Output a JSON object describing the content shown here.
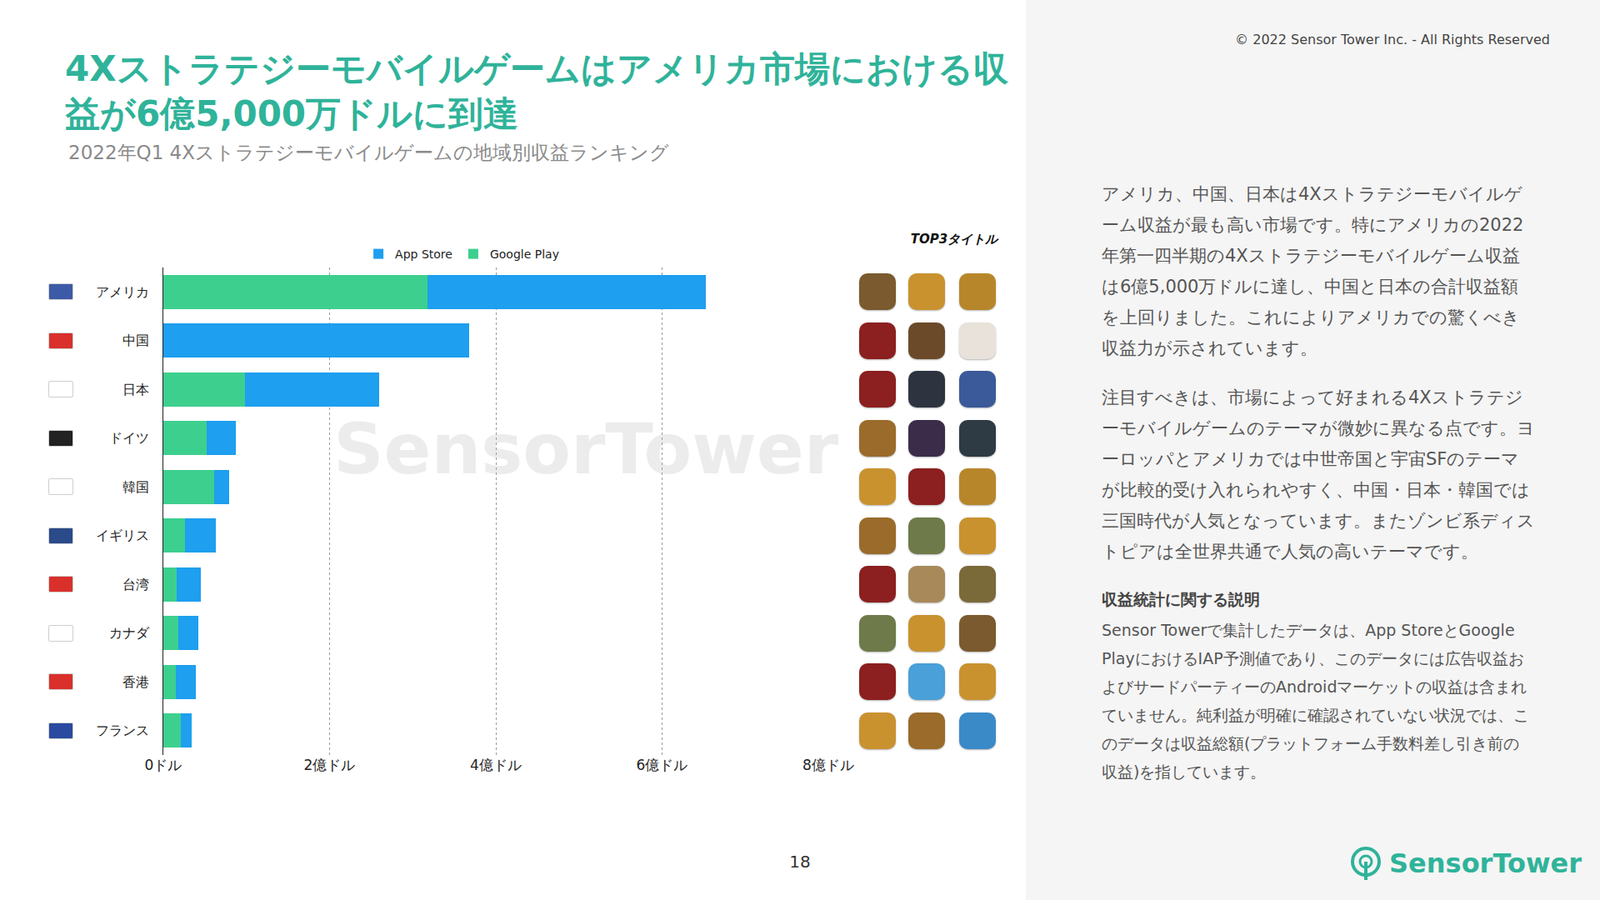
{
  "chart_data": {
    "type": "bar",
    "orientation": "horizontal",
    "stacked": true,
    "title": "4Xストラテジーモバイルゲームはアメリカ市場における収益が6億5,000万ドルに到達",
    "subtitle": "2022年Q1 4Xストラテジーモバイルゲームの地域別収益ランキング",
    "categories": [
      "アメリカ",
      "中国",
      "日本",
      "ドイツ",
      "韓国",
      "イギリス",
      "台湾",
      "カナダ",
      "香港",
      "フランス"
    ],
    "series": [
      {
        "name": "Google Play",
        "color": "#3dcf8e",
        "values": [
          3.18,
          0,
          0.98,
          0.52,
          0.61,
          0.26,
          0.16,
          0.18,
          0.15,
          0.21
        ]
      },
      {
        "name": "App Store",
        "color": "#1e9fef",
        "values": [
          3.35,
          3.68,
          1.62,
          0.35,
          0.18,
          0.37,
          0.29,
          0.24,
          0.24,
          0.13
        ]
      }
    ],
    "xlim": [
      0,
      8
    ],
    "xticks": [
      {
        "value": 0,
        "label": "0ドル"
      },
      {
        "value": 2,
        "label": "2億ドル"
      },
      {
        "value": 4,
        "label": "4億ドル"
      },
      {
        "value": 6,
        "label": "6億ドル"
      },
      {
        "value": 8,
        "label": "8億ドル"
      }
    ],
    "grid": true,
    "legend": "top"
  },
  "page": {
    "top3_header": "TOP3タイトル",
    "watermark": "SensorTower",
    "copyright": "© 2022 Sensor Tower Inc. - All Rights Reserved",
    "paragraphs": [
      "アメリカ、中国、日本は4Xストラテジーモバイルゲーム収益が最も高い市場です。特にアメリカの2022年第一四半期の4Xストラテジーモバイルゲーム収益は6億5,000万ドルに達し、中国と日本の合計収益額を上回りました。これによりアメリカでの驚くべき収益力が示されています。",
      "注目すべきは、市場によって好まれる4Xストラテジーモバイルゲームのテーマが微妙に異なる点です。ヨーロッパとアメリカでは中世帝国と宇宙SFのテーマが比較的受け入れられやすく、中国・日本・韓国では三国時代が人気となっています。またゾンビ系ディストピアは全世界共通で人気の高いテーマです。"
    ],
    "note_title": "収益統計に関する説明",
    "note_body": "Sensor Towerで集計したデータは、App StoreとGoogle PlayにおけるIAP予測値であり、このデータには広告収益およびサードパーティーのAndroidマーケットの収益は含まれていません。純利益が明確に確認されていない状況では、このデータは収益総額(プラットフォーム手数料差し引き前の収益)を指しています。",
    "page_number": "18",
    "logo": "SensorTower"
  }
}
